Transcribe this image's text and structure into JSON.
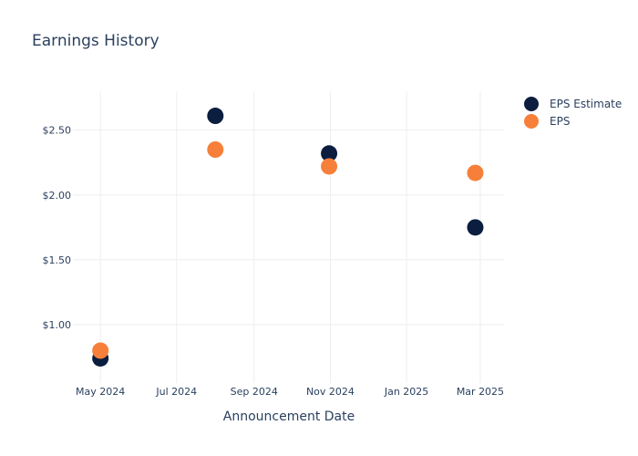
{
  "chart_data": {
    "type": "scatter",
    "title": "Earnings History",
    "xlabel": "Announcement Date",
    "ylabel": "",
    "x_ticks": [
      "May 2024",
      "Jul 2024",
      "Sep 2024",
      "Nov 2024",
      "Jan 2025",
      "Mar 2025"
    ],
    "x_tick_dates": [
      "2024-05-01",
      "2024-07-01",
      "2024-09-01",
      "2024-11-01",
      "2025-01-01",
      "2025-03-01"
    ],
    "xlim": [
      "2024-04-09",
      "2025-03-20"
    ],
    "y_ticks": [
      "$1.00",
      "$1.50",
      "$2.00",
      "$2.50"
    ],
    "y_tick_values": [
      1.0,
      1.5,
      2.0,
      2.5
    ],
    "ylim": [
      0.55,
      2.8
    ],
    "grid": true,
    "legend_position": "top-right",
    "series": [
      {
        "name": "EPS Estimate",
        "color": "#0b1e3f",
        "points": [
          {
            "x": "2024-05-01",
            "y": 0.74
          },
          {
            "x": "2024-08-01",
            "y": 2.61
          },
          {
            "x": "2024-10-31",
            "y": 2.32
          },
          {
            "x": "2025-02-25",
            "y": 1.75
          }
        ]
      },
      {
        "name": "EPS",
        "color": "#f6803a",
        "points": [
          {
            "x": "2024-05-01",
            "y": 0.8
          },
          {
            "x": "2024-08-01",
            "y": 2.35
          },
          {
            "x": "2024-10-31",
            "y": 2.22
          },
          {
            "x": "2025-02-25",
            "y": 2.17
          }
        ]
      }
    ]
  }
}
